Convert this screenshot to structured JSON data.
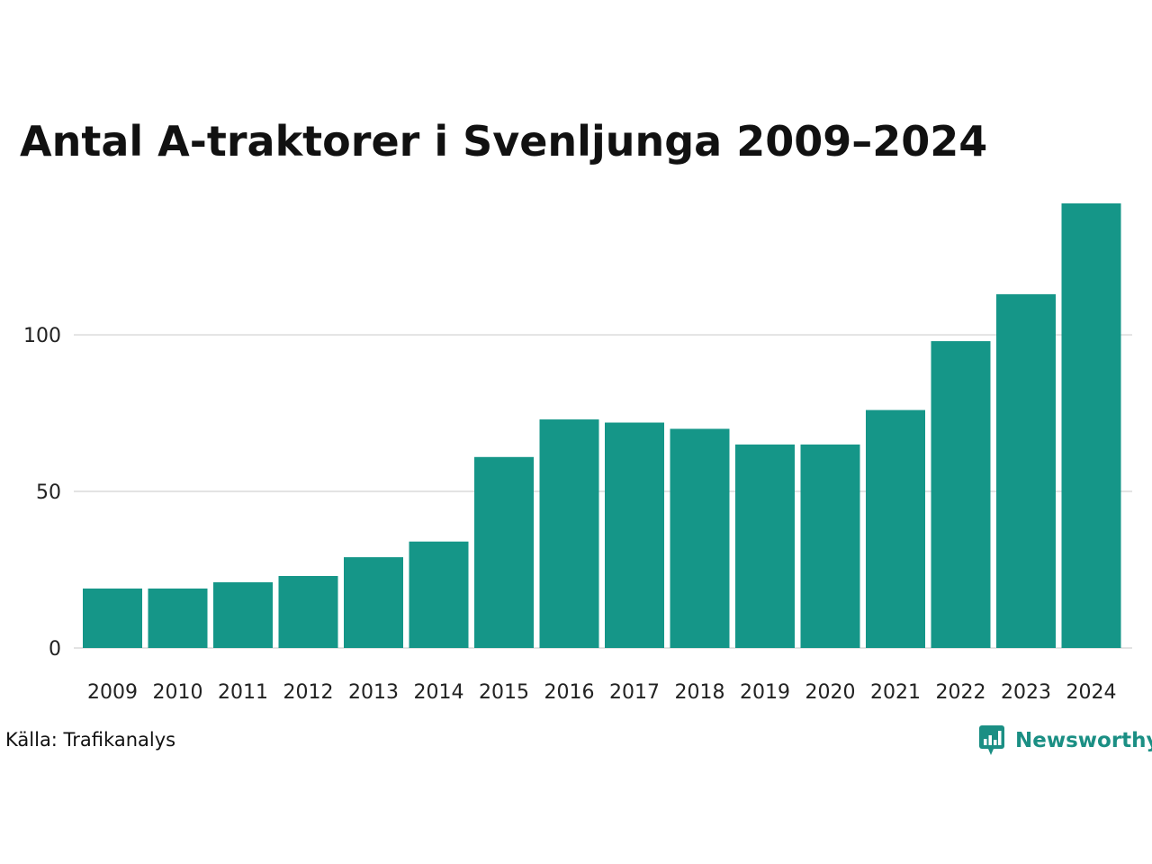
{
  "title": "Antal A-traktorer i Svenljunga 2009–2024",
  "source": "Källa: Trafikanalys",
  "brand": "Newsworthy",
  "colors": {
    "bar": "#159688",
    "grid": "#e3e3e3",
    "brand": "#1b8f84"
  },
  "chart_data": {
    "type": "bar",
    "title": "Antal A-traktorer i Svenljunga 2009–2024",
    "xlabel": "",
    "ylabel": "",
    "categories": [
      "2009",
      "2010",
      "2011",
      "2012",
      "2013",
      "2014",
      "2015",
      "2016",
      "2017",
      "2018",
      "2019",
      "2020",
      "2021",
      "2022",
      "2023",
      "2024"
    ],
    "values": [
      19,
      19,
      21,
      23,
      29,
      34,
      61,
      73,
      72,
      70,
      65,
      65,
      76,
      98,
      113,
      142
    ],
    "yticks": [
      0,
      50,
      100
    ],
    "ylim": [
      0,
      142
    ],
    "grid": true
  }
}
